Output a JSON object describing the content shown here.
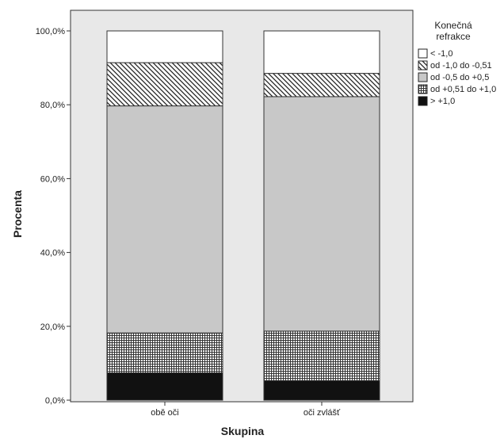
{
  "chart_data": {
    "type": "bar",
    "stacked": true,
    "xlabel": "Skupina",
    "ylabel": "Procenta",
    "categories": [
      "obě oči",
      "oči zvlášť"
    ],
    "ylim": [
      0,
      100
    ],
    "yticks": [
      "0,0%",
      "20,0%",
      "40,0%",
      "60,0%",
      "80,0%",
      "100,0%"
    ],
    "legend": {
      "title_lines": [
        "Konečná",
        "refrakce"
      ],
      "placement": "right"
    },
    "series": [
      {
        "name": "> +1,0",
        "values": [
          7.4,
          5.3
        ],
        "pattern": "solid-black"
      },
      {
        "name": "od +0,51 do +1,0",
        "values": [
          10.8,
          13.4
        ],
        "pattern": "grid"
      },
      {
        "name": "od -0,5 do +0,5",
        "values": [
          61.5,
          63.5
        ],
        "pattern": "solid-gray"
      },
      {
        "name": "od -1,0 do -0,51",
        "values": [
          11.7,
          6.3
        ],
        "pattern": "diagonal"
      },
      {
        "name": "< -1,0",
        "values": [
          8.6,
          11.5
        ],
        "pattern": "solid-white"
      }
    ]
  }
}
